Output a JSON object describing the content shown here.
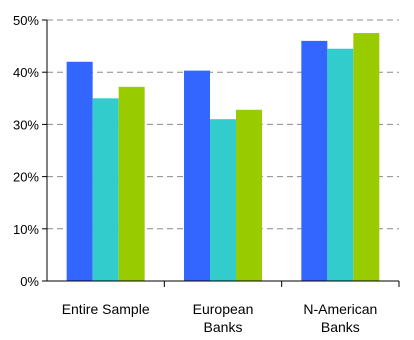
{
  "chart_data": {
    "type": "bar",
    "categories": [
      [
        "Entire Sample"
      ],
      [
        "European",
        "Banks"
      ],
      [
        "N-American",
        "Banks"
      ]
    ],
    "series": [
      {
        "values": [
          42,
          40.3,
          46
        ],
        "color": "#3366ff"
      },
      {
        "values": [
          35,
          31,
          44.5
        ],
        "color": "#33cccc"
      },
      {
        "values": [
          37.2,
          32.8,
          47.5
        ],
        "color": "#99cc00"
      }
    ],
    "ylim": [
      0,
      50
    ],
    "yticks": [
      0,
      10,
      20,
      30,
      40,
      50
    ],
    "ytick_labels": [
      "0%",
      "10%",
      "20%",
      "30%",
      "40%",
      "50%"
    ],
    "grid": true,
    "grid_style": "dashed",
    "legend": false
  }
}
